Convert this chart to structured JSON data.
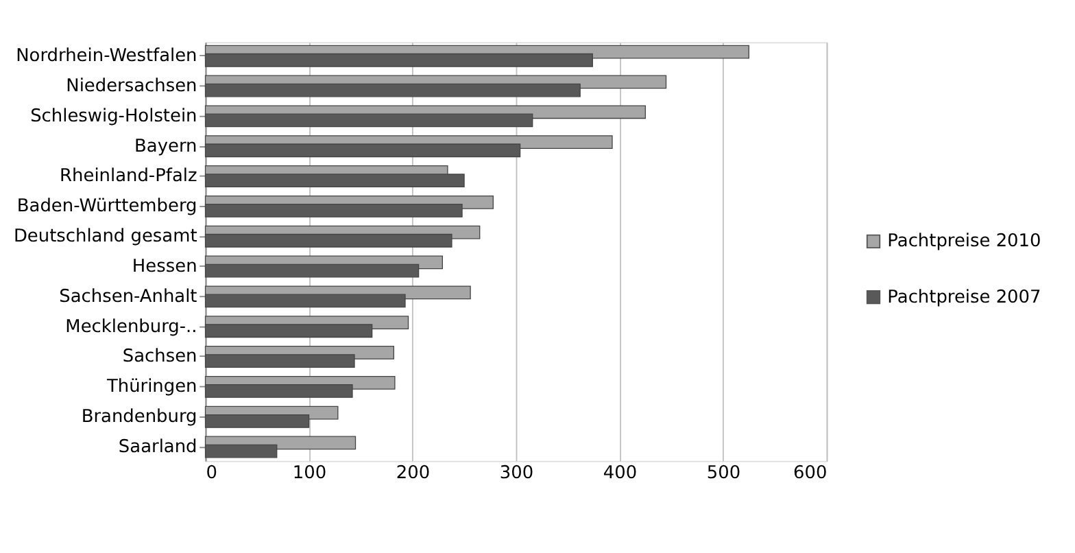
{
  "chart_data": {
    "type": "bar",
    "orientation": "horizontal",
    "categories": [
      "Nordrhein-Westfalen",
      "Niedersachsen",
      "Schleswig-Holstein",
      "Bayern",
      "Rheinland-Pfalz",
      "Baden-Württemberg",
      "Deutschland gesamt",
      "Hessen",
      "Sachsen-Anhalt",
      "Mecklenburg-..",
      "Sachsen",
      "Thüringen",
      "Brandenburg",
      "Saarland"
    ],
    "series": [
      {
        "name": "Pachtpreise 2010",
        "color": "#a6a6a6",
        "values": [
          525,
          445,
          425,
          393,
          234,
          278,
          265,
          229,
          256,
          196,
          182,
          183,
          128,
          145
        ]
      },
      {
        "name": "Pachtpreise 2007",
        "color": "#595959",
        "values": [
          374,
          362,
          316,
          304,
          250,
          248,
          238,
          206,
          193,
          161,
          144,
          142,
          100,
          69
        ]
      }
    ],
    "xlim": [
      0,
      600
    ],
    "xticks": [
      0,
      100,
      200,
      300,
      400,
      500,
      600
    ],
    "grid": "x",
    "legend": "right"
  }
}
